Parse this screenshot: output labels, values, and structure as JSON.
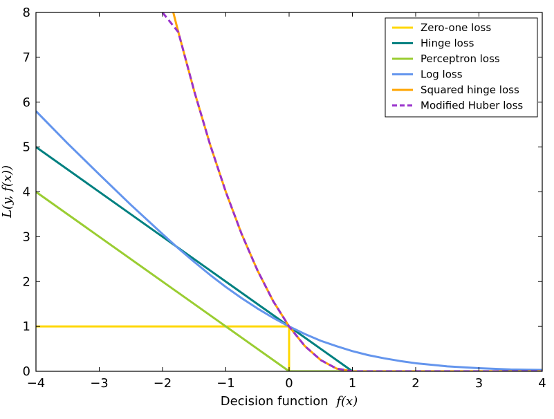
{
  "chart_data": {
    "type": "line",
    "xlabel": "Decision function",
    "xlabel_math": "f(x)",
    "ylabel": "L(y, f(x))",
    "xlim": [
      -4,
      4
    ],
    "ylim": [
      0,
      8
    ],
    "xticks": [
      -4,
      -3,
      -2,
      -1,
      0,
      1,
      2,
      3,
      4
    ],
    "xtick_labels": [
      "−4",
      "−3",
      "−2",
      "−1",
      "0",
      "1",
      "2",
      "3",
      "4"
    ],
    "yticks": [
      0,
      1,
      2,
      3,
      4,
      5,
      6,
      7,
      8
    ],
    "ytick_labels": [
      "0",
      "1",
      "2",
      "3",
      "4",
      "5",
      "6",
      "7",
      "8"
    ],
    "grid": false,
    "legend_position": "top-right",
    "series": [
      {
        "name": "Zero-one loss",
        "color": "#FFD700",
        "dash": "solid",
        "x": [
          -4,
          0,
          0,
          4
        ],
        "y": [
          1,
          1,
          0,
          0
        ]
      },
      {
        "name": "Hinge loss",
        "color": "#008080",
        "dash": "solid",
        "x": [
          -4,
          1,
          4
        ],
        "y": [
          5,
          0,
          0
        ]
      },
      {
        "name": "Perceptron loss",
        "color": "#9ACD32",
        "dash": "solid",
        "x": [
          -4,
          0,
          4
        ],
        "y": [
          4,
          0,
          0
        ]
      },
      {
        "name": "Log loss",
        "color": "#6495ED",
        "dash": "solid",
        "x": [
          -4,
          -3.5,
          -3,
          -2.5,
          -2,
          -1.75,
          -1.5,
          -1.25,
          -1,
          -0.75,
          -0.5,
          -0.25,
          0,
          0.25,
          0.5,
          0.75,
          1,
          1.25,
          1.5,
          1.75,
          2,
          2.5,
          3,
          3.5,
          4
        ],
        "y": [
          5.8,
          5.08,
          4.39,
          3.71,
          3.06,
          2.74,
          2.44,
          2.15,
          1.88,
          1.63,
          1.4,
          1.19,
          1.0,
          0.83,
          0.68,
          0.56,
          0.45,
          0.36,
          0.29,
          0.23,
          0.18,
          0.11,
          0.07,
          0.04,
          0.03
        ]
      },
      {
        "name": "Squared hinge loss",
        "color": "#FFA500",
        "dash": "solid",
        "x": [
          -1.83,
          -1.75,
          -1.5,
          -1.25,
          -1,
          -0.75,
          -0.5,
          -0.25,
          0,
          0.25,
          0.5,
          0.75,
          1,
          4
        ],
        "y": [
          8.0,
          7.56,
          6.25,
          5.06,
          4.0,
          3.06,
          2.25,
          1.56,
          1.0,
          0.56,
          0.25,
          0.06,
          0,
          0
        ]
      },
      {
        "name": "Modified Huber loss",
        "color": "#9932CC",
        "dash": "dashed",
        "x": [
          -2,
          -1.75,
          -1.5,
          -1.25,
          -1,
          -0.75,
          -0.5,
          -0.25,
          0,
          0.25,
          0.5,
          0.75,
          1,
          4
        ],
        "y": [
          8.0,
          7.56,
          6.25,
          5.06,
          4.0,
          3.06,
          2.25,
          1.56,
          1.0,
          0.56,
          0.25,
          0.06,
          0,
          0
        ]
      }
    ]
  }
}
